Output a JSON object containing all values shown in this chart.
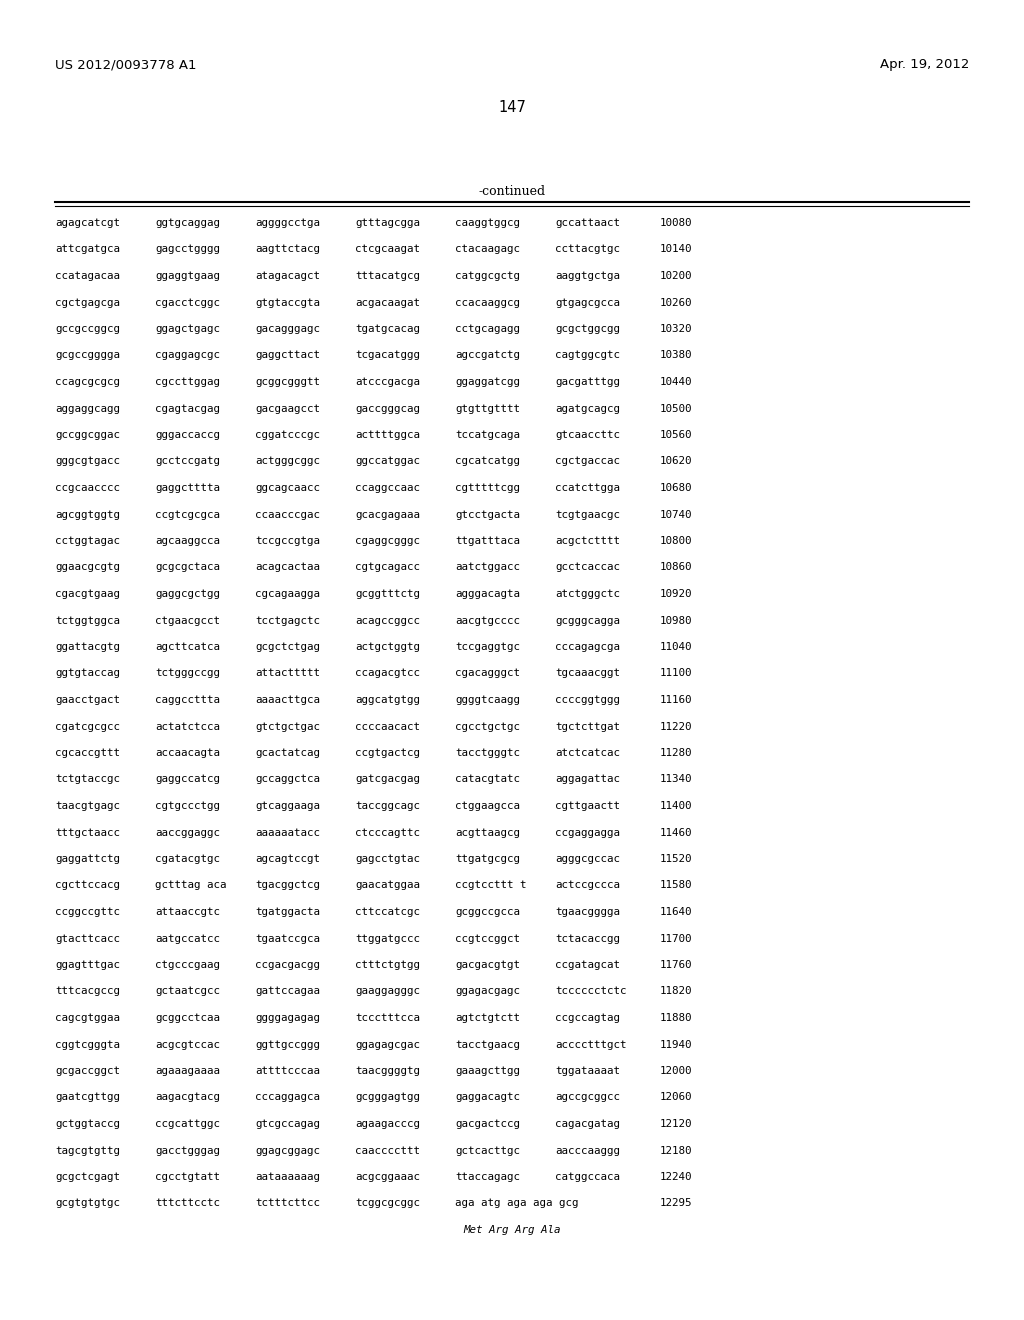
{
  "header_left": "US 2012/0093778 A1",
  "header_right": "Apr. 19, 2012",
  "page_number": "147",
  "continued_label": "-continued",
  "background_color": "#ffffff",
  "text_color": "#000000",
  "font_size_header": 9.5,
  "font_size_page": 10.5,
  "font_size_sequence": 7.8,
  "font_size_continued": 9.0,
  "sequence_lines": [
    [
      "agagcatcgt",
      "ggtgcaggag",
      "aggggcctga",
      "gtttagcgga",
      "caaggtggcg",
      "gccattaact",
      "10080"
    ],
    [
      "attcgatgca",
      "gagcctgggg",
      "aagttctacg",
      "ctcgcaagat",
      "ctacaagagc",
      "ccttacgtgc",
      "10140"
    ],
    [
      "ccatagacaa",
      "ggaggtgaag",
      "atagacagct",
      "tttacatgcg",
      "catggcgctg",
      "aaggtgctga",
      "10200"
    ],
    [
      "cgctgagcga",
      "cgacctcggc",
      "gtgtaccgta",
      "acgacaagat",
      "ccacaaggcg",
      "gtgagcgcca",
      "10260"
    ],
    [
      "gccgccggcg",
      "ggagctgagc",
      "gacagggagc",
      "tgatgcacag",
      "cctgcagagg",
      "gcgctggcgg",
      "10320"
    ],
    [
      "gcgccgggga",
      "cgaggagcgc",
      "gaggcttact",
      "tcgacatggg",
      "agccgatctg",
      "cagtggcgtc",
      "10380"
    ],
    [
      "ccagcgcgcg",
      "cgccttggag",
      "gcggcgggtt",
      "atcccgacga",
      "ggaggatcgg",
      "gacgatttgg",
      "10440"
    ],
    [
      "aggaggcagg",
      "cgagtacgag",
      "gacgaagcct",
      "gaccgggcag",
      "gtgttgtttt",
      "agatgcagcg",
      "10500"
    ],
    [
      "gccggcggac",
      "gggaccaccg",
      "cggatcccgc",
      "acttttggca",
      "tccatgcaga",
      "gtcaaccttc",
      "10560"
    ],
    [
      "gggcgtgacc",
      "gcctccgatg",
      "actgggcggc",
      "ggccatggac",
      "cgcatcatgg",
      "cgctgaccac",
      "10620"
    ],
    [
      "ccgcaacccc",
      "gaggctttta",
      "ggcagcaacc",
      "ccaggccaac",
      "cgtttttcgg",
      "ccatcttgga",
      "10680"
    ],
    [
      "agcggtggtg",
      "ccgtcgcgca",
      "ccaacccgac",
      "gcacgagaaa",
      "gtcctgacta",
      "tcgtgaacgc",
      "10740"
    ],
    [
      "cctggtagac",
      "agcaaggcca",
      "tccgccgtga",
      "cgaggcgggc",
      "ttgatttaca",
      "acgctctttt",
      "10800"
    ],
    [
      "ggaacgcgtg",
      "gcgcgctaca",
      "acagcactaa",
      "cgtgcagacc",
      "aatctggacc",
      "gcctcaccac",
      "10860"
    ],
    [
      "cgacgtgaag",
      "gaggcgctgg",
      "cgcagaagga",
      "gcggtttctg",
      "agggacagta",
      "atctgggctc",
      "10920"
    ],
    [
      "tctggtggca",
      "ctgaacgcct",
      "tcctgagctc",
      "acagccggcc",
      "aacgtgcccc",
      "gcgggcagga",
      "10980"
    ],
    [
      "ggattacgtg",
      "agcttcatca",
      "gcgctctgag",
      "actgctggtg",
      "tccgaggtgc",
      "cccagagcga",
      "11040"
    ],
    [
      "ggtgtaccag",
      "tctgggccgg",
      "attacttttt",
      "ccagacgtcc",
      "cgacagggct",
      "tgcaaacggt",
      "11100"
    ],
    [
      "gaacctgact",
      "caggccttta",
      "aaaacttgca",
      "aggcatgtgg",
      "ggggtcaagg",
      "ccccggtggg",
      "11160"
    ],
    [
      "cgatcgcgcc",
      "actatctcca",
      "gtctgctgac",
      "ccccaacact",
      "cgcctgctgc",
      "tgctcttgat",
      "11220"
    ],
    [
      "cgcaccgttt",
      "accaacagta",
      "gcactatcag",
      "ccgtgactcg",
      "tacctgggtc",
      "atctcatcac",
      "11280"
    ],
    [
      "tctgtaccgc",
      "gaggccatcg",
      "gccaggctca",
      "gatcgacgag",
      "catacgtatc",
      "aggagattac",
      "11340"
    ],
    [
      "taacgtgagc",
      "cgtgccctgg",
      "gtcaggaaga",
      "taccggcagc",
      "ctggaagcca",
      "cgttgaactt",
      "11400"
    ],
    [
      "tttgctaacc",
      "aaccggaggc",
      "aaaaaatacc",
      "ctcccagttc",
      "acgttaagcg",
      "ccgaggagga",
      "11460"
    ],
    [
      "gaggattctg",
      "cgatacgtgc",
      "agcagtccgt",
      "gagcctgtac",
      "ttgatgcgcg",
      "agggcgccac",
      "11520"
    ],
    [
      "cgcttccacg",
      "gctttag aca",
      "tgacggctcg",
      "gaacatggaa",
      "ccgtccttt t",
      "actccgccca",
      "11580"
    ],
    [
      "ccggccgttc",
      "attaaccgtc",
      "tgatggacta",
      "cttccatcgc",
      "gcggccgcca",
      "tgaacgggga",
      "11640"
    ],
    [
      "gtacttcacc",
      "aatgccatcc",
      "tgaatccgca",
      "ttggatgccc",
      "ccgtccggct",
      "tctacaccgg",
      "11700"
    ],
    [
      "ggagtttgac",
      "ctgcccgaag",
      "ccgacgacgg",
      "ctttctgtgg",
      "gacgacgtgt",
      "ccgatagcat",
      "11760"
    ],
    [
      "tttcacgccg",
      "gctaatcgcc",
      "gattccagaa",
      "gaaggagggc",
      "ggagacgagc",
      "tcccccctctc",
      "11820"
    ],
    [
      "cagcgtggaa",
      "gcggcctcaa",
      "ggggagagag",
      "tccctttcca",
      "agtctgtctt",
      "ccgccagtag",
      "11880"
    ],
    [
      "cggtcgggta",
      "acgcgtccac",
      "ggttgccggg",
      "ggagagcgac",
      "tacctgaacg",
      "acccctttgct",
      "11940"
    ],
    [
      "gcgaccggct",
      "agaaagaaaa",
      "attttcccaa",
      "taacggggtg",
      "gaaagcttgg",
      "tggataaaat",
      "12000"
    ],
    [
      "gaatcgttgg",
      "aagacgtacg",
      "cccaggagca",
      "gcgggagtgg",
      "gaggacagtc",
      "agccgcggcc",
      "12060"
    ],
    [
      "gctggtaccg",
      "ccgcattggc",
      "gtcgccagag",
      "agaagacccg",
      "gacgactccg",
      "cagacgatag",
      "12120"
    ],
    [
      "tagcgtgttg",
      "gacctgggag",
      "ggagcggagc",
      "caaccccttt",
      "gctcacttgc",
      "aacccaaggg",
      "12180"
    ],
    [
      "gcgctcgagt",
      "cgcctgtatt",
      "aataaaaaag",
      "acgcggaaac",
      "ttaccagagc",
      "catggccaca",
      "12240"
    ],
    [
      "gcgtgtgtgc",
      "tttcttcctc",
      "tctttcttcc",
      "tcggcgcggc",
      "aga atg aga aga gcg",
      "",
      "12295"
    ],
    [
      "",
      "",
      "",
      "",
      "",
      "Met Arg Arg Ala",
      ""
    ]
  ]
}
